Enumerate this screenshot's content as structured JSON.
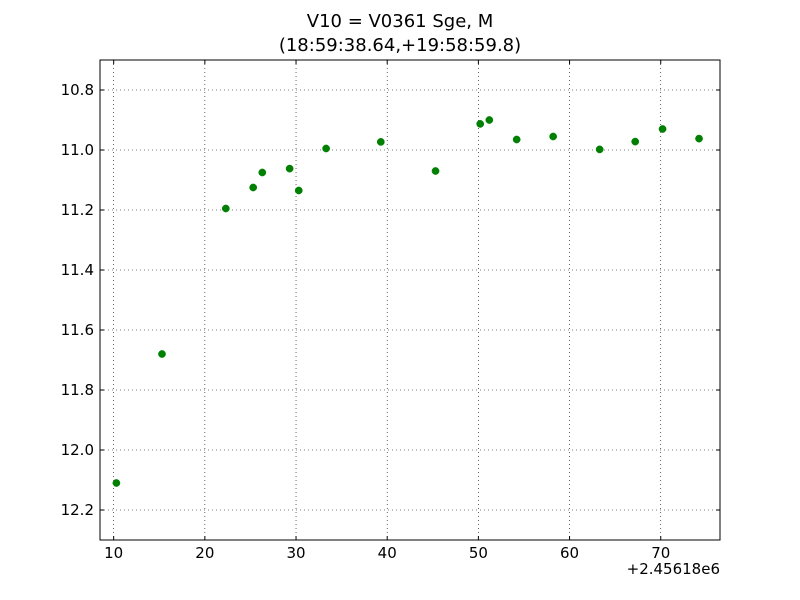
{
  "chart_data": {
    "type": "scatter",
    "title_lines": [
      "V10 = V0361 Sge, M",
      "(18:59:38.64,+19:58:59.8)"
    ],
    "x_offset_label": "+2.45618e6",
    "xlim": [
      8.5,
      76.5
    ],
    "ylim": [
      12.3,
      10.7
    ],
    "y_inverted": true,
    "grid": true,
    "grid_style": "dotted",
    "marker_color": "#008000",
    "x_ticks": [
      10,
      20,
      30,
      40,
      50,
      60,
      70
    ],
    "x_tick_labels": [
      "10",
      "20",
      "30",
      "40",
      "50",
      "60",
      "70"
    ],
    "y_ticks": [
      10.8,
      11.0,
      11.2,
      11.4,
      11.6,
      11.8,
      12.0,
      12.2
    ],
    "y_tick_labels": [
      "10.8",
      "11.0",
      "11.2",
      "11.4",
      "11.6",
      "11.8",
      "12.0",
      "12.2"
    ],
    "points": [
      {
        "x": 10.3,
        "y": 12.11
      },
      {
        "x": 15.3,
        "y": 11.68
      },
      {
        "x": 22.3,
        "y": 11.195
      },
      {
        "x": 25.3,
        "y": 11.125
      },
      {
        "x": 26.3,
        "y": 11.075
      },
      {
        "x": 29.3,
        "y": 11.062
      },
      {
        "x": 30.3,
        "y": 11.135
      },
      {
        "x": 33.3,
        "y": 10.995
      },
      {
        "x": 39.3,
        "y": 10.973
      },
      {
        "x": 45.3,
        "y": 11.07
      },
      {
        "x": 50.2,
        "y": 10.913
      },
      {
        "x": 51.2,
        "y": 10.9
      },
      {
        "x": 54.2,
        "y": 10.965
      },
      {
        "x": 58.2,
        "y": 10.955
      },
      {
        "x": 63.3,
        "y": 10.998
      },
      {
        "x": 67.2,
        "y": 10.972
      },
      {
        "x": 70.2,
        "y": 10.93
      },
      {
        "x": 74.2,
        "y": 10.962
      }
    ]
  }
}
